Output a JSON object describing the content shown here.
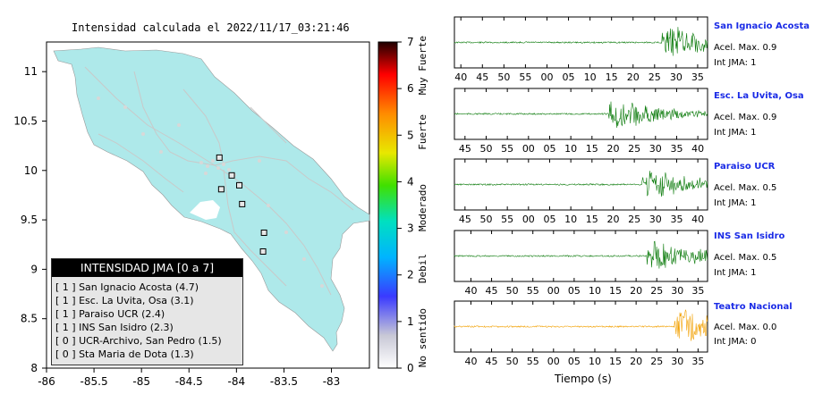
{
  "map": {
    "title": "Intensidad calculada el 2022/11/17_03:21:46",
    "lon_ticks": [
      "-86",
      "-85.5",
      "-85",
      "-84.5",
      "-84",
      "-83.5",
      "-83"
    ],
    "lat_ticks": [
      "11",
      "10.5",
      "10",
      "9.5",
      "9",
      "8.5",
      "8"
    ],
    "land_color": "#aee9ea",
    "station_markers": [
      {
        "lon": -84.18,
        "lat": 10.13
      },
      {
        "lon": -84.05,
        "lat": 9.95
      },
      {
        "lon": -83.97,
        "lat": 9.85
      },
      {
        "lon": -84.16,
        "lat": 9.81
      },
      {
        "lon": -83.94,
        "lat": 9.66
      },
      {
        "lon": -83.71,
        "lat": 9.37
      },
      {
        "lon": -83.72,
        "lat": 9.18
      }
    ]
  },
  "color_scale": {
    "ticks": [
      "0",
      "1",
      "2",
      "3",
      "4",
      "5",
      "6",
      "7"
    ],
    "labels": [
      "No sentido",
      "Debil",
      "Moderado",
      "Fuerte",
      "Muy Fuerte"
    ]
  },
  "legend": {
    "title": "INTENSIDAD JMA [0 a 7]",
    "rows": [
      "[ 1 ] San Ignacio Acosta (4.7)",
      "[ 1 ] Esc. La Uvita, Osa (3.1)",
      "[ 1 ] Paraiso UCR (2.4)",
      "[ 1 ] INS San Isidro (2.3)",
      "[ 0 ] UCR-Archivo, San Pedro (1.5)",
      "[ 0 ] Sta Maria de Dota (1.3)"
    ]
  },
  "waveforms": {
    "xlabel": "Tiempo (s)",
    "panels": [
      {
        "name": "San Ignacio Acosta",
        "acel": "Acel. Max. 0.9",
        "int": "Int JMA: 1",
        "color": "#0a7a0a",
        "ticks": [
          "40",
          "45",
          "50",
          "55",
          "00",
          "05",
          "10",
          "15",
          "20",
          "25",
          "30",
          "35"
        ],
        "onset": 0.82,
        "tmin": 38.5,
        "tmax": 97.3
      },
      {
        "name": "Esc. La Uvita, Osa",
        "acel": "Acel. Max. 0.9",
        "int": "Int JMA: 1",
        "color": "#0a7a0a",
        "ticks": [
          "45",
          "50",
          "55",
          "00",
          "05",
          "10",
          "15",
          "20",
          "25",
          "30",
          "35",
          "40"
        ],
        "onset": 0.61,
        "tmin": 42.5,
        "tmax": 102.3
      },
      {
        "name": "Paraiso UCR",
        "acel": "Acel. Max. 0.5",
        "int": "Int JMA: 1",
        "color": "#0a7a0a",
        "ticks": [
          "45",
          "50",
          "55",
          "00",
          "05",
          "10",
          "15",
          "20",
          "25",
          "30",
          "35",
          "40"
        ],
        "onset": 0.74,
        "tmin": 42.5,
        "tmax": 102.3
      },
      {
        "name": "INS San Isidro",
        "acel": "Acel. Max. 0.5",
        "int": "Int JMA: 1",
        "color": "#0a7a0a",
        "ticks": [
          "40",
          "45",
          "50",
          "55",
          "00",
          "05",
          "10",
          "15",
          "20",
          "25",
          "30",
          "35"
        ],
        "onset": 0.76,
        "tmin": 36.0,
        "tmax": 97.3
      },
      {
        "name": "Teatro Nacional",
        "acel": "Acel. Max. 0.0",
        "int": "Int JMA: 0",
        "color": "#f2a000",
        "ticks": [
          "40",
          "45",
          "50",
          "55",
          "00",
          "05",
          "10",
          "15",
          "20",
          "25",
          "30",
          "35"
        ],
        "onset": 0.87,
        "tmin": 36.0,
        "tmax": 97.3
      }
    ]
  }
}
